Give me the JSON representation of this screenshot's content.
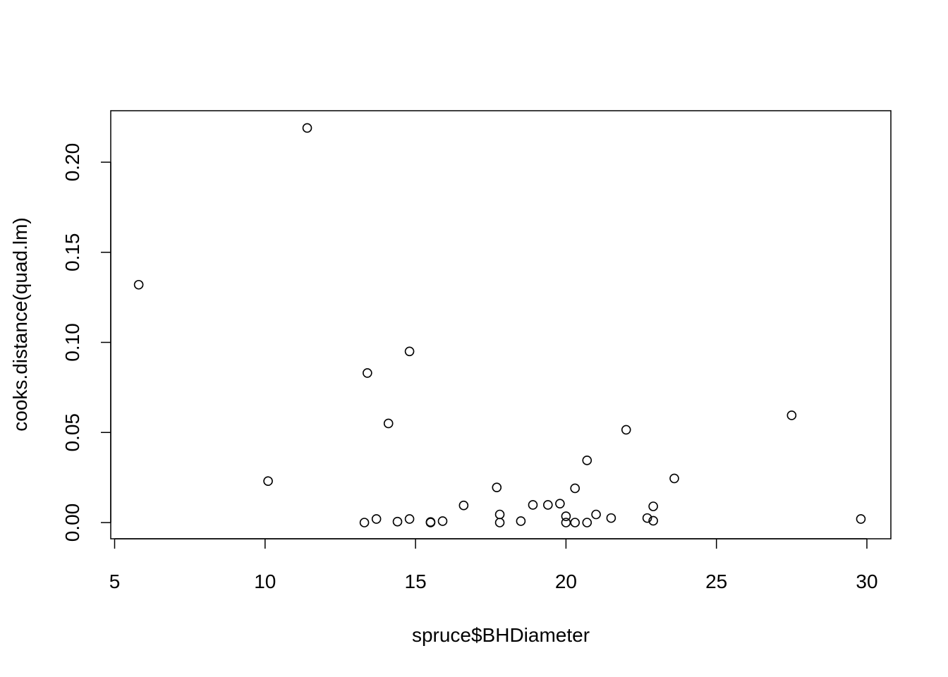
{
  "chart_data": {
    "type": "scatter",
    "title": "",
    "xlabel": "spruce$BHDiameter",
    "ylabel": "cooks.distance(quad.lm)",
    "xlim": [
      5,
      30
    ],
    "ylim": [
      0,
      0.22
    ],
    "x_ticks": [
      5,
      10,
      15,
      20,
      25,
      30
    ],
    "x_tick_labels": [
      "5",
      "10",
      "15",
      "20",
      "25",
      "30"
    ],
    "y_ticks": [
      0,
      0.05,
      0.1,
      0.15,
      0.2
    ],
    "y_tick_labels": [
      "0.00",
      "0.05",
      "0.10",
      "0.15",
      "0.20"
    ],
    "grid": false,
    "legend": "none",
    "marker": "open-circle",
    "colors": {
      "points": "#000000",
      "axes": "#000000",
      "background": "#ffffff"
    },
    "points": [
      {
        "x": 5.8,
        "y": 0.132
      },
      {
        "x": 10.1,
        "y": 0.023
      },
      {
        "x": 11.4,
        "y": 0.219
      },
      {
        "x": 13.3,
        "y": 0.0
      },
      {
        "x": 13.4,
        "y": 0.083
      },
      {
        "x": 13.7,
        "y": 0.002
      },
      {
        "x": 14.1,
        "y": 0.055
      },
      {
        "x": 14.4,
        "y": 0.0005
      },
      {
        "x": 14.8,
        "y": 0.095
      },
      {
        "x": 14.8,
        "y": 0.002
      },
      {
        "x": 15.5,
        "y": 0.0003
      },
      {
        "x": 15.5,
        "y": 0.0
      },
      {
        "x": 15.9,
        "y": 0.0008
      },
      {
        "x": 16.6,
        "y": 0.0095
      },
      {
        "x": 17.7,
        "y": 0.0195
      },
      {
        "x": 17.8,
        "y": 0.0045
      },
      {
        "x": 17.8,
        "y": 0.0
      },
      {
        "x": 18.5,
        "y": 0.0008
      },
      {
        "x": 18.9,
        "y": 0.0098
      },
      {
        "x": 19.4,
        "y": 0.0098
      },
      {
        "x": 19.8,
        "y": 0.0105
      },
      {
        "x": 20.0,
        "y": 0.0035
      },
      {
        "x": 20.0,
        "y": 0.0
      },
      {
        "x": 20.3,
        "y": 0.019
      },
      {
        "x": 20.3,
        "y": 0.0
      },
      {
        "x": 20.7,
        "y": 0.0345
      },
      {
        "x": 20.7,
        "y": 0.0
      },
      {
        "x": 21.0,
        "y": 0.0045
      },
      {
        "x": 21.5,
        "y": 0.0025
      },
      {
        "x": 22.0,
        "y": 0.0515
      },
      {
        "x": 22.7,
        "y": 0.0025
      },
      {
        "x": 22.9,
        "y": 0.009
      },
      {
        "x": 22.9,
        "y": 0.001
      },
      {
        "x": 23.6,
        "y": 0.0245
      },
      {
        "x": 27.5,
        "y": 0.0595
      },
      {
        "x": 29.8,
        "y": 0.002
      }
    ]
  }
}
